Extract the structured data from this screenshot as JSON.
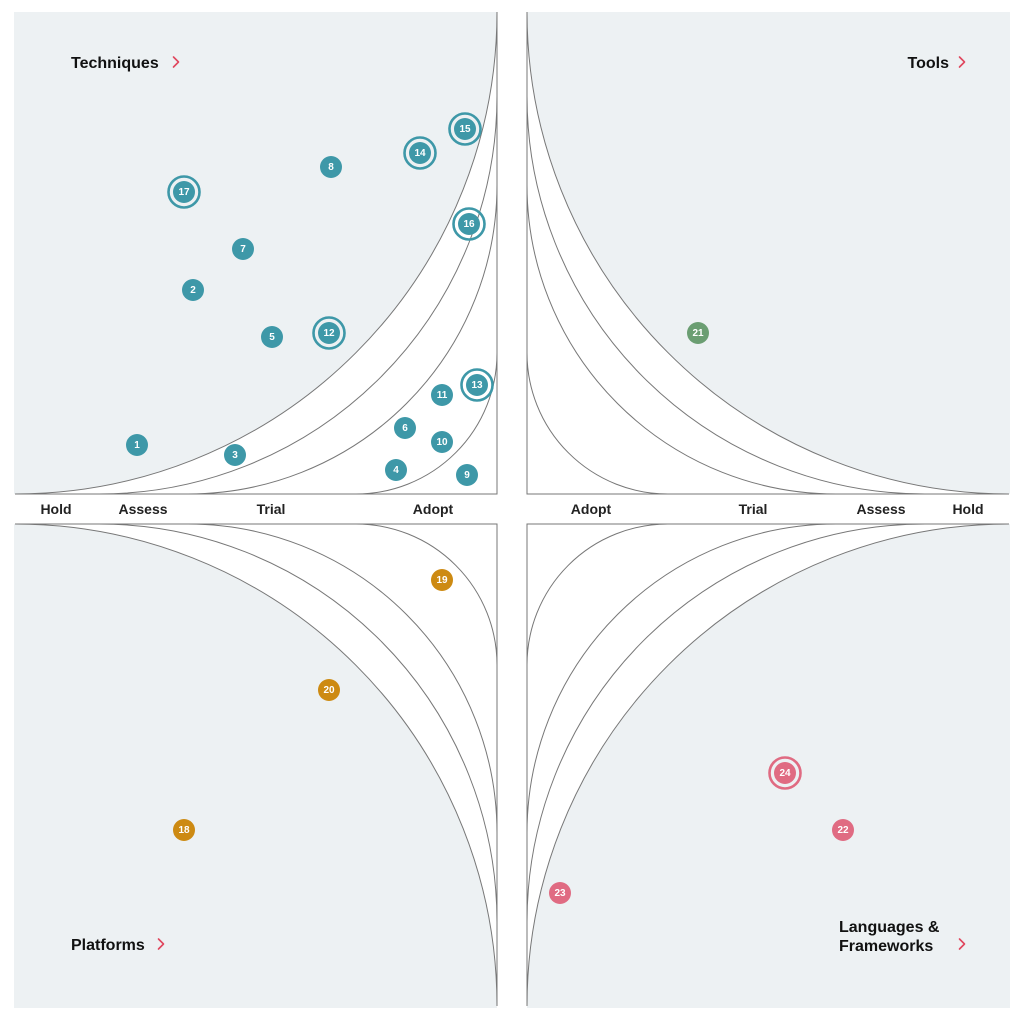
{
  "quadrants": [
    {
      "key": "techniques",
      "title_lines": [
        "Techniques"
      ],
      "color": "#3e98a8"
    },
    {
      "key": "tools",
      "title_lines": [
        "Tools"
      ],
      "color": "#6b9e72"
    },
    {
      "key": "platforms",
      "title_lines": [
        "Platforms"
      ],
      "color": "#cd8a12"
    },
    {
      "key": "languages",
      "title_lines": [
        "Languages &",
        "Frameworks"
      ],
      "color": "#e06b82"
    }
  ],
  "ring_labels_left": [
    "Hold",
    "Assess",
    "Trial",
    "Adopt"
  ],
  "ring_labels_right": [
    "Adopt",
    "Trial",
    "Assess",
    "Hold"
  ],
  "blips": [
    {
      "id": "1",
      "quadrant": "techniques",
      "ring": "Assess",
      "new": false
    },
    {
      "id": "2",
      "quadrant": "techniques",
      "ring": "Assess",
      "new": false
    },
    {
      "id": "3",
      "quadrant": "techniques",
      "ring": "Trial",
      "new": false
    },
    {
      "id": "4",
      "quadrant": "techniques",
      "ring": "Adopt",
      "new": false
    },
    {
      "id": "5",
      "quadrant": "techniques",
      "ring": "Trial",
      "new": false
    },
    {
      "id": "6",
      "quadrant": "techniques",
      "ring": "Adopt",
      "new": false
    },
    {
      "id": "7",
      "quadrant": "techniques",
      "ring": "Trial",
      "new": false
    },
    {
      "id": "8",
      "quadrant": "techniques",
      "ring": "Assess",
      "new": false
    },
    {
      "id": "9",
      "quadrant": "techniques",
      "ring": "Adopt",
      "new": false
    },
    {
      "id": "10",
      "quadrant": "techniques",
      "ring": "Adopt",
      "new": false
    },
    {
      "id": "11",
      "quadrant": "techniques",
      "ring": "Adopt",
      "new": false
    },
    {
      "id": "12",
      "quadrant": "techniques",
      "ring": "Trial",
      "new": true
    },
    {
      "id": "13",
      "quadrant": "techniques",
      "ring": "Adopt",
      "new": true
    },
    {
      "id": "14",
      "quadrant": "techniques",
      "ring": "Assess",
      "new": true
    },
    {
      "id": "15",
      "quadrant": "techniques",
      "ring": "Assess",
      "new": true
    },
    {
      "id": "16",
      "quadrant": "techniques",
      "ring": "Trial",
      "new": true
    },
    {
      "id": "17",
      "quadrant": "techniques",
      "ring": "Hold",
      "new": true
    },
    {
      "id": "18",
      "quadrant": "platforms",
      "ring": "Hold",
      "new": false
    },
    {
      "id": "19",
      "quadrant": "platforms",
      "ring": "Adopt",
      "new": false
    },
    {
      "id": "20",
      "quadrant": "platforms",
      "ring": "Trial",
      "new": false
    },
    {
      "id": "21",
      "quadrant": "tools",
      "ring": "Trial",
      "new": false
    },
    {
      "id": "22",
      "quadrant": "languages",
      "ring": "Assess",
      "new": false
    },
    {
      "id": "23",
      "quadrant": "languages",
      "ring": "Hold",
      "new": false
    },
    {
      "id": "24",
      "quadrant": "languages",
      "ring": "Assess",
      "new": true
    }
  ]
}
